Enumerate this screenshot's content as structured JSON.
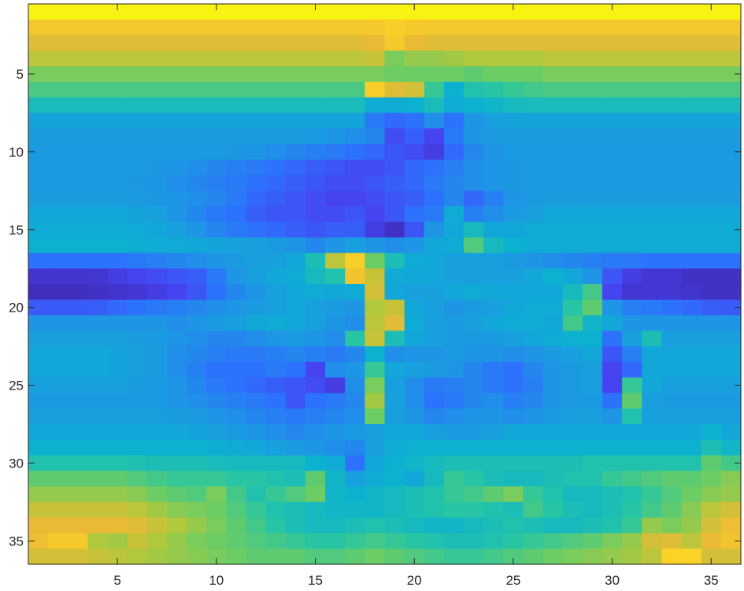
{
  "chart_data": {
    "type": "heatmap",
    "title": "",
    "xlabel": "",
    "ylabel": "",
    "n_cols": 36,
    "n_rows": 36,
    "xlim": [
      0.5,
      36.5
    ],
    "ylim": [
      0.5,
      36.5
    ],
    "y_direction": "reverse",
    "clim": [
      0,
      1
    ],
    "colormap": "parula",
    "grid": false,
    "xticks": [
      5,
      10,
      15,
      20,
      25,
      30,
      35
    ],
    "yticks": [
      5,
      10,
      15,
      20,
      25,
      30,
      35
    ],
    "xtick_labels": [
      "5",
      "10",
      "15",
      "20",
      "25",
      "30",
      "35"
    ],
    "ytick_labels": [
      "5",
      "10",
      "15",
      "20",
      "25",
      "30",
      "35"
    ],
    "values": [
      [
        0.98,
        0.98,
        0.98,
        0.98,
        0.98,
        0.98,
        0.98,
        0.98,
        0.98,
        0.98,
        0.98,
        0.98,
        0.98,
        0.98,
        0.98,
        0.98,
        0.98,
        0.98,
        0.98,
        0.98,
        0.98,
        0.98,
        0.98,
        0.98,
        0.98,
        0.98,
        0.98,
        0.98,
        0.98,
        0.98,
        0.98,
        0.98,
        0.98,
        0.98,
        0.98,
        0.98
      ],
      [
        0.85,
        0.85,
        0.85,
        0.85,
        0.85,
        0.85,
        0.85,
        0.85,
        0.85,
        0.85,
        0.85,
        0.85,
        0.85,
        0.85,
        0.85,
        0.85,
        0.85,
        0.86,
        0.88,
        0.86,
        0.85,
        0.85,
        0.85,
        0.85,
        0.85,
        0.85,
        0.85,
        0.85,
        0.85,
        0.85,
        0.85,
        0.85,
        0.85,
        0.85,
        0.85,
        0.85
      ],
      [
        0.78,
        0.78,
        0.78,
        0.78,
        0.78,
        0.78,
        0.78,
        0.78,
        0.78,
        0.78,
        0.78,
        0.78,
        0.78,
        0.78,
        0.78,
        0.78,
        0.78,
        0.8,
        0.86,
        0.8,
        0.78,
        0.78,
        0.78,
        0.78,
        0.78,
        0.78,
        0.78,
        0.78,
        0.78,
        0.78,
        0.78,
        0.78,
        0.78,
        0.78,
        0.78,
        0.78
      ],
      [
        0.72,
        0.72,
        0.72,
        0.72,
        0.72,
        0.72,
        0.72,
        0.72,
        0.72,
        0.72,
        0.72,
        0.72,
        0.72,
        0.72,
        0.72,
        0.72,
        0.72,
        0.74,
        0.62,
        0.66,
        0.66,
        0.68,
        0.7,
        0.7,
        0.7,
        0.7,
        0.72,
        0.72,
        0.72,
        0.72,
        0.72,
        0.72,
        0.72,
        0.72,
        0.72,
        0.72
      ],
      [
        0.62,
        0.62,
        0.62,
        0.62,
        0.62,
        0.62,
        0.62,
        0.62,
        0.62,
        0.62,
        0.62,
        0.62,
        0.62,
        0.62,
        0.62,
        0.62,
        0.62,
        0.62,
        0.6,
        0.6,
        0.6,
        0.6,
        0.58,
        0.6,
        0.6,
        0.6,
        0.62,
        0.62,
        0.62,
        0.62,
        0.62,
        0.62,
        0.62,
        0.62,
        0.62,
        0.62
      ],
      [
        0.55,
        0.55,
        0.55,
        0.55,
        0.55,
        0.55,
        0.55,
        0.55,
        0.55,
        0.55,
        0.55,
        0.55,
        0.55,
        0.55,
        0.55,
        0.55,
        0.55,
        0.88,
        0.78,
        0.76,
        0.52,
        0.4,
        0.48,
        0.5,
        0.52,
        0.54,
        0.55,
        0.55,
        0.55,
        0.55,
        0.55,
        0.55,
        0.55,
        0.55,
        0.55,
        0.55
      ],
      [
        0.45,
        0.45,
        0.45,
        0.45,
        0.45,
        0.45,
        0.45,
        0.45,
        0.45,
        0.45,
        0.45,
        0.45,
        0.45,
        0.45,
        0.45,
        0.45,
        0.45,
        0.38,
        0.38,
        0.4,
        0.45,
        0.38,
        0.4,
        0.42,
        0.44,
        0.45,
        0.45,
        0.45,
        0.45,
        0.45,
        0.45,
        0.45,
        0.45,
        0.45,
        0.45,
        0.45
      ],
      [
        0.35,
        0.35,
        0.35,
        0.35,
        0.35,
        0.35,
        0.35,
        0.35,
        0.35,
        0.35,
        0.35,
        0.35,
        0.35,
        0.35,
        0.35,
        0.35,
        0.35,
        0.22,
        0.18,
        0.2,
        0.28,
        0.2,
        0.3,
        0.34,
        0.35,
        0.35,
        0.35,
        0.35,
        0.35,
        0.35,
        0.35,
        0.35,
        0.35,
        0.35,
        0.35,
        0.35
      ],
      [
        0.33,
        0.33,
        0.33,
        0.33,
        0.33,
        0.33,
        0.33,
        0.33,
        0.33,
        0.33,
        0.33,
        0.33,
        0.33,
        0.33,
        0.32,
        0.3,
        0.28,
        0.26,
        0.12,
        0.16,
        0.1,
        0.22,
        0.3,
        0.32,
        0.33,
        0.33,
        0.33,
        0.33,
        0.33,
        0.33,
        0.33,
        0.33,
        0.33,
        0.33,
        0.33,
        0.33
      ],
      [
        0.32,
        0.32,
        0.32,
        0.32,
        0.32,
        0.32,
        0.32,
        0.32,
        0.32,
        0.32,
        0.31,
        0.3,
        0.28,
        0.26,
        0.24,
        0.22,
        0.2,
        0.18,
        0.14,
        0.12,
        0.08,
        0.18,
        0.26,
        0.3,
        0.32,
        0.32,
        0.32,
        0.32,
        0.32,
        0.32,
        0.32,
        0.32,
        0.32,
        0.32,
        0.32,
        0.32
      ],
      [
        0.32,
        0.32,
        0.32,
        0.32,
        0.32,
        0.32,
        0.31,
        0.3,
        0.28,
        0.26,
        0.24,
        0.22,
        0.2,
        0.18,
        0.16,
        0.14,
        0.12,
        0.12,
        0.14,
        0.18,
        0.2,
        0.24,
        0.28,
        0.3,
        0.31,
        0.32,
        0.32,
        0.32,
        0.32,
        0.32,
        0.32,
        0.32,
        0.32,
        0.32,
        0.32,
        0.32
      ],
      [
        0.32,
        0.32,
        0.32,
        0.32,
        0.32,
        0.31,
        0.3,
        0.28,
        0.26,
        0.24,
        0.22,
        0.2,
        0.18,
        0.16,
        0.14,
        0.12,
        0.12,
        0.14,
        0.16,
        0.18,
        0.22,
        0.26,
        0.28,
        0.3,
        0.31,
        0.32,
        0.32,
        0.32,
        0.32,
        0.32,
        0.32,
        0.32,
        0.32,
        0.32,
        0.32,
        0.32
      ],
      [
        0.33,
        0.33,
        0.33,
        0.33,
        0.33,
        0.32,
        0.31,
        0.3,
        0.28,
        0.26,
        0.22,
        0.18,
        0.16,
        0.14,
        0.12,
        0.1,
        0.1,
        0.12,
        0.14,
        0.16,
        0.2,
        0.26,
        0.18,
        0.24,
        0.3,
        0.32,
        0.33,
        0.33,
        0.33,
        0.33,
        0.33,
        0.33,
        0.33,
        0.33,
        0.33,
        0.33
      ],
      [
        0.36,
        0.36,
        0.36,
        0.36,
        0.36,
        0.35,
        0.34,
        0.3,
        0.26,
        0.22,
        0.2,
        0.16,
        0.14,
        0.14,
        0.12,
        0.12,
        0.14,
        0.1,
        0.14,
        0.2,
        0.22,
        0.38,
        0.24,
        0.28,
        0.32,
        0.34,
        0.36,
        0.36,
        0.36,
        0.36,
        0.36,
        0.36,
        0.36,
        0.36,
        0.36,
        0.36
      ],
      [
        0.38,
        0.38,
        0.38,
        0.38,
        0.38,
        0.37,
        0.36,
        0.34,
        0.3,
        0.26,
        0.22,
        0.2,
        0.18,
        0.16,
        0.14,
        0.16,
        0.16,
        0.08,
        0.04,
        0.14,
        0.3,
        0.36,
        0.44,
        0.36,
        0.36,
        0.38,
        0.38,
        0.38,
        0.38,
        0.38,
        0.38,
        0.38,
        0.38,
        0.38,
        0.38,
        0.38
      ],
      [
        0.4,
        0.4,
        0.4,
        0.4,
        0.4,
        0.39,
        0.38,
        0.37,
        0.36,
        0.35,
        0.34,
        0.34,
        0.32,
        0.3,
        0.26,
        0.3,
        0.34,
        0.3,
        0.28,
        0.3,
        0.36,
        0.38,
        0.56,
        0.44,
        0.4,
        0.38,
        0.38,
        0.38,
        0.38,
        0.38,
        0.38,
        0.38,
        0.38,
        0.38,
        0.38,
        0.38
      ],
      [
        0.2,
        0.2,
        0.2,
        0.2,
        0.2,
        0.22,
        0.24,
        0.26,
        0.28,
        0.3,
        0.32,
        0.34,
        0.34,
        0.36,
        0.46,
        0.72,
        0.88,
        0.6,
        0.46,
        0.38,
        0.36,
        0.34,
        0.34,
        0.34,
        0.32,
        0.3,
        0.28,
        0.26,
        0.24,
        0.22,
        0.22,
        0.2,
        0.2,
        0.2,
        0.2,
        0.2
      ],
      [
        0.05,
        0.05,
        0.05,
        0.06,
        0.08,
        0.1,
        0.12,
        0.14,
        0.16,
        0.22,
        0.3,
        0.34,
        0.36,
        0.38,
        0.44,
        0.48,
        0.84,
        0.74,
        0.38,
        0.36,
        0.36,
        0.34,
        0.34,
        0.34,
        0.34,
        0.36,
        0.4,
        0.36,
        0.3,
        0.14,
        0.08,
        0.06,
        0.06,
        0.04,
        0.04,
        0.04
      ],
      [
        0.03,
        0.03,
        0.03,
        0.04,
        0.05,
        0.06,
        0.08,
        0.1,
        0.14,
        0.2,
        0.26,
        0.3,
        0.34,
        0.36,
        0.38,
        0.36,
        0.38,
        0.76,
        0.36,
        0.34,
        0.34,
        0.36,
        0.38,
        0.36,
        0.36,
        0.36,
        0.36,
        0.44,
        0.54,
        0.1,
        0.06,
        0.06,
        0.06,
        0.05,
        0.04,
        0.04
      ],
      [
        0.15,
        0.15,
        0.15,
        0.16,
        0.18,
        0.2,
        0.22,
        0.24,
        0.26,
        0.28,
        0.3,
        0.32,
        0.34,
        0.36,
        0.34,
        0.32,
        0.3,
        0.7,
        0.74,
        0.36,
        0.34,
        0.3,
        0.32,
        0.34,
        0.36,
        0.38,
        0.38,
        0.5,
        0.58,
        0.3,
        0.24,
        0.22,
        0.2,
        0.18,
        0.16,
        0.15
      ],
      [
        0.3,
        0.3,
        0.3,
        0.3,
        0.3,
        0.3,
        0.3,
        0.28,
        0.3,
        0.32,
        0.34,
        0.36,
        0.38,
        0.36,
        0.34,
        0.3,
        0.28,
        0.72,
        0.78,
        0.38,
        0.34,
        0.32,
        0.34,
        0.36,
        0.38,
        0.38,
        0.36,
        0.54,
        0.42,
        0.36,
        0.3,
        0.3,
        0.3,
        0.3,
        0.3,
        0.3
      ],
      [
        0.34,
        0.34,
        0.34,
        0.34,
        0.34,
        0.33,
        0.32,
        0.3,
        0.28,
        0.26,
        0.26,
        0.28,
        0.3,
        0.32,
        0.3,
        0.28,
        0.5,
        0.74,
        0.46,
        0.36,
        0.34,
        0.32,
        0.32,
        0.32,
        0.34,
        0.36,
        0.38,
        0.4,
        0.4,
        0.2,
        0.34,
        0.46,
        0.34,
        0.34,
        0.34,
        0.34
      ],
      [
        0.36,
        0.36,
        0.36,
        0.36,
        0.35,
        0.34,
        0.32,
        0.28,
        0.26,
        0.24,
        0.22,
        0.22,
        0.24,
        0.26,
        0.24,
        0.22,
        0.26,
        0.4,
        0.28,
        0.3,
        0.3,
        0.32,
        0.3,
        0.3,
        0.28,
        0.3,
        0.32,
        0.34,
        0.36,
        0.14,
        0.24,
        0.36,
        0.36,
        0.36,
        0.36,
        0.36
      ],
      [
        0.36,
        0.36,
        0.36,
        0.36,
        0.35,
        0.34,
        0.32,
        0.28,
        0.24,
        0.2,
        0.2,
        0.2,
        0.22,
        0.2,
        0.1,
        0.28,
        0.3,
        0.52,
        0.36,
        0.34,
        0.32,
        0.3,
        0.26,
        0.22,
        0.2,
        0.26,
        0.3,
        0.32,
        0.34,
        0.1,
        0.18,
        0.36,
        0.36,
        0.36,
        0.36,
        0.36
      ],
      [
        0.34,
        0.34,
        0.34,
        0.34,
        0.34,
        0.33,
        0.32,
        0.3,
        0.26,
        0.22,
        0.2,
        0.18,
        0.16,
        0.14,
        0.12,
        0.08,
        0.28,
        0.62,
        0.34,
        0.28,
        0.22,
        0.24,
        0.26,
        0.22,
        0.2,
        0.24,
        0.3,
        0.32,
        0.34,
        0.1,
        0.52,
        0.36,
        0.34,
        0.34,
        0.34,
        0.34
      ],
      [
        0.32,
        0.32,
        0.32,
        0.32,
        0.32,
        0.32,
        0.32,
        0.3,
        0.28,
        0.26,
        0.24,
        0.22,
        0.2,
        0.14,
        0.2,
        0.22,
        0.26,
        0.68,
        0.34,
        0.28,
        0.2,
        0.22,
        0.26,
        0.28,
        0.24,
        0.26,
        0.3,
        0.32,
        0.32,
        0.2,
        0.58,
        0.34,
        0.32,
        0.32,
        0.32,
        0.32
      ],
      [
        0.34,
        0.34,
        0.34,
        0.34,
        0.34,
        0.34,
        0.34,
        0.33,
        0.32,
        0.3,
        0.28,
        0.26,
        0.24,
        0.22,
        0.24,
        0.26,
        0.28,
        0.6,
        0.34,
        0.3,
        0.26,
        0.28,
        0.3,
        0.3,
        0.28,
        0.3,
        0.32,
        0.34,
        0.34,
        0.3,
        0.48,
        0.34,
        0.34,
        0.34,
        0.34,
        0.34
      ],
      [
        0.36,
        0.36,
        0.36,
        0.36,
        0.36,
        0.36,
        0.36,
        0.36,
        0.35,
        0.34,
        0.32,
        0.3,
        0.28,
        0.26,
        0.28,
        0.3,
        0.32,
        0.34,
        0.36,
        0.36,
        0.34,
        0.32,
        0.32,
        0.34,
        0.36,
        0.36,
        0.36,
        0.36,
        0.36,
        0.36,
        0.36,
        0.36,
        0.36,
        0.36,
        0.4,
        0.36
      ],
      [
        0.4,
        0.4,
        0.4,
        0.4,
        0.4,
        0.4,
        0.4,
        0.4,
        0.4,
        0.39,
        0.38,
        0.36,
        0.34,
        0.32,
        0.3,
        0.28,
        0.26,
        0.34,
        0.38,
        0.4,
        0.4,
        0.4,
        0.4,
        0.4,
        0.4,
        0.4,
        0.4,
        0.4,
        0.4,
        0.4,
        0.4,
        0.4,
        0.4,
        0.4,
        0.46,
        0.42
      ],
      [
        0.48,
        0.48,
        0.48,
        0.48,
        0.48,
        0.47,
        0.46,
        0.46,
        0.46,
        0.45,
        0.44,
        0.44,
        0.44,
        0.44,
        0.4,
        0.38,
        0.2,
        0.36,
        0.4,
        0.42,
        0.44,
        0.46,
        0.46,
        0.46,
        0.46,
        0.46,
        0.46,
        0.46,
        0.48,
        0.48,
        0.48,
        0.48,
        0.48,
        0.48,
        0.58,
        0.54
      ],
      [
        0.58,
        0.58,
        0.58,
        0.58,
        0.58,
        0.56,
        0.54,
        0.52,
        0.52,
        0.52,
        0.5,
        0.5,
        0.48,
        0.46,
        0.58,
        0.42,
        0.34,
        0.38,
        0.4,
        0.36,
        0.44,
        0.52,
        0.5,
        0.46,
        0.44,
        0.44,
        0.46,
        0.48,
        0.48,
        0.52,
        0.54,
        0.56,
        0.58,
        0.58,
        0.6,
        0.64
      ],
      [
        0.66,
        0.66,
        0.66,
        0.66,
        0.66,
        0.64,
        0.6,
        0.58,
        0.56,
        0.62,
        0.54,
        0.48,
        0.52,
        0.56,
        0.6,
        0.42,
        0.4,
        0.42,
        0.44,
        0.46,
        0.48,
        0.52,
        0.54,
        0.58,
        0.62,
        0.52,
        0.48,
        0.44,
        0.44,
        0.46,
        0.48,
        0.52,
        0.56,
        0.6,
        0.64,
        0.66
      ],
      [
        0.74,
        0.74,
        0.74,
        0.74,
        0.74,
        0.72,
        0.68,
        0.64,
        0.62,
        0.6,
        0.56,
        0.52,
        0.48,
        0.46,
        0.44,
        0.42,
        0.42,
        0.42,
        0.44,
        0.46,
        0.48,
        0.5,
        0.5,
        0.48,
        0.46,
        0.54,
        0.5,
        0.46,
        0.44,
        0.46,
        0.5,
        0.54,
        0.58,
        0.64,
        0.72,
        0.76
      ],
      [
        0.8,
        0.8,
        0.8,
        0.8,
        0.8,
        0.78,
        0.74,
        0.7,
        0.66,
        0.62,
        0.58,
        0.54,
        0.5,
        0.46,
        0.44,
        0.44,
        0.46,
        0.48,
        0.46,
        0.44,
        0.42,
        0.42,
        0.44,
        0.46,
        0.48,
        0.46,
        0.44,
        0.44,
        0.46,
        0.48,
        0.52,
        0.66,
        0.62,
        0.66,
        0.76,
        0.82
      ],
      [
        0.82,
        0.86,
        0.86,
        0.7,
        0.68,
        0.74,
        0.7,
        0.66,
        0.62,
        0.6,
        0.58,
        0.56,
        0.54,
        0.52,
        0.5,
        0.5,
        0.52,
        0.54,
        0.52,
        0.5,
        0.48,
        0.46,
        0.46,
        0.48,
        0.5,
        0.52,
        0.54,
        0.56,
        0.58,
        0.62,
        0.66,
        0.76,
        0.78,
        0.72,
        0.8,
        0.84
      ],
      [
        0.76,
        0.76,
        0.76,
        0.74,
        0.72,
        0.7,
        0.68,
        0.66,
        0.64,
        0.62,
        0.6,
        0.58,
        0.58,
        0.58,
        0.56,
        0.56,
        0.58,
        0.6,
        0.58,
        0.56,
        0.54,
        0.52,
        0.52,
        0.54,
        0.56,
        0.58,
        0.6,
        0.62,
        0.64,
        0.66,
        0.68,
        0.72,
        0.9,
        0.9,
        0.76,
        0.76
      ]
    ]
  }
}
